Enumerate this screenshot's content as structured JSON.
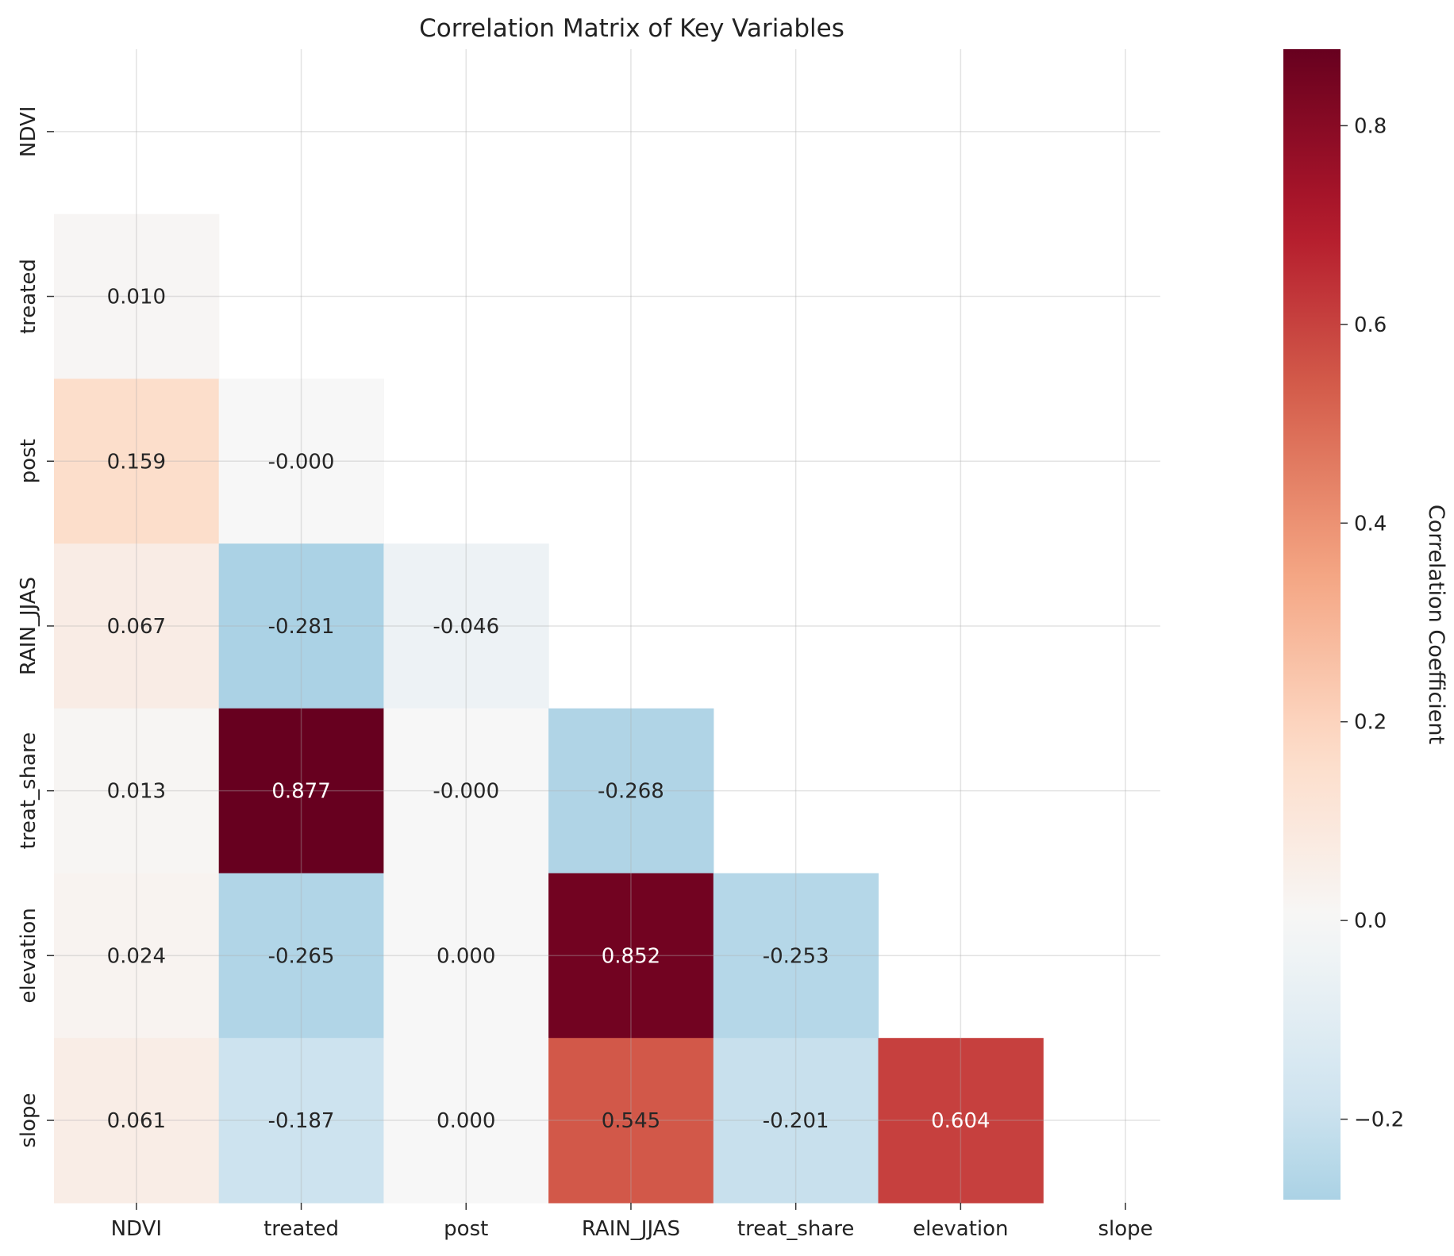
{
  "chart_data": {
    "type": "heatmap",
    "title": "Correlation Matrix of Key Variables",
    "variables": [
      "NDVI",
      "treated",
      "post",
      "RAIN_JJAS",
      "treat_share",
      "elevation",
      "slope"
    ],
    "mask": "upper-triangle-including-diagonal",
    "cells": [
      {
        "row": "treated",
        "col": "NDVI",
        "value": 0.01,
        "label": "0.010"
      },
      {
        "row": "post",
        "col": "NDVI",
        "value": 0.159,
        "label": "0.159"
      },
      {
        "row": "post",
        "col": "treated",
        "value": -0.0001,
        "label": "-0.000"
      },
      {
        "row": "RAIN_JJAS",
        "col": "NDVI",
        "value": 0.067,
        "label": "0.067"
      },
      {
        "row": "RAIN_JJAS",
        "col": "treated",
        "value": -0.281,
        "label": "-0.281"
      },
      {
        "row": "RAIN_JJAS",
        "col": "post",
        "value": -0.046,
        "label": "-0.046"
      },
      {
        "row": "treat_share",
        "col": "NDVI",
        "value": 0.013,
        "label": "0.013"
      },
      {
        "row": "treat_share",
        "col": "treated",
        "value": 0.877,
        "label": "0.877"
      },
      {
        "row": "treat_share",
        "col": "post",
        "value": -0.0001,
        "label": "-0.000"
      },
      {
        "row": "treat_share",
        "col": "RAIN_JJAS",
        "value": -0.268,
        "label": "-0.268"
      },
      {
        "row": "elevation",
        "col": "NDVI",
        "value": 0.024,
        "label": "0.024"
      },
      {
        "row": "elevation",
        "col": "treated",
        "value": -0.265,
        "label": "-0.265"
      },
      {
        "row": "elevation",
        "col": "post",
        "value": 0.0,
        "label": "0.000"
      },
      {
        "row": "elevation",
        "col": "RAIN_JJAS",
        "value": 0.852,
        "label": "0.852"
      },
      {
        "row": "elevation",
        "col": "treat_share",
        "value": -0.253,
        "label": "-0.253"
      },
      {
        "row": "slope",
        "col": "NDVI",
        "value": 0.061,
        "label": "0.061"
      },
      {
        "row": "slope",
        "col": "treated",
        "value": -0.187,
        "label": "-0.187"
      },
      {
        "row": "slope",
        "col": "post",
        "value": 0.0,
        "label": "0.000"
      },
      {
        "row": "slope",
        "col": "RAIN_JJAS",
        "value": 0.545,
        "label": "0.545"
      },
      {
        "row": "slope",
        "col": "treat_share",
        "value": -0.201,
        "label": "-0.201"
      },
      {
        "row": "slope",
        "col": "elevation",
        "value": 0.604,
        "label": "0.604"
      }
    ],
    "colormap": "RdBu_r",
    "center": 0,
    "colorbar": {
      "label": "Correlation Coefficient",
      "vmin": -0.281,
      "vmax": 0.877,
      "ticks": [
        -0.2,
        0.0,
        0.2,
        0.4,
        0.6,
        0.8
      ],
      "tick_labels": [
        "−0.2",
        "0.0",
        "0.2",
        "0.4",
        "0.6",
        "0.8"
      ]
    },
    "grid": true
  }
}
